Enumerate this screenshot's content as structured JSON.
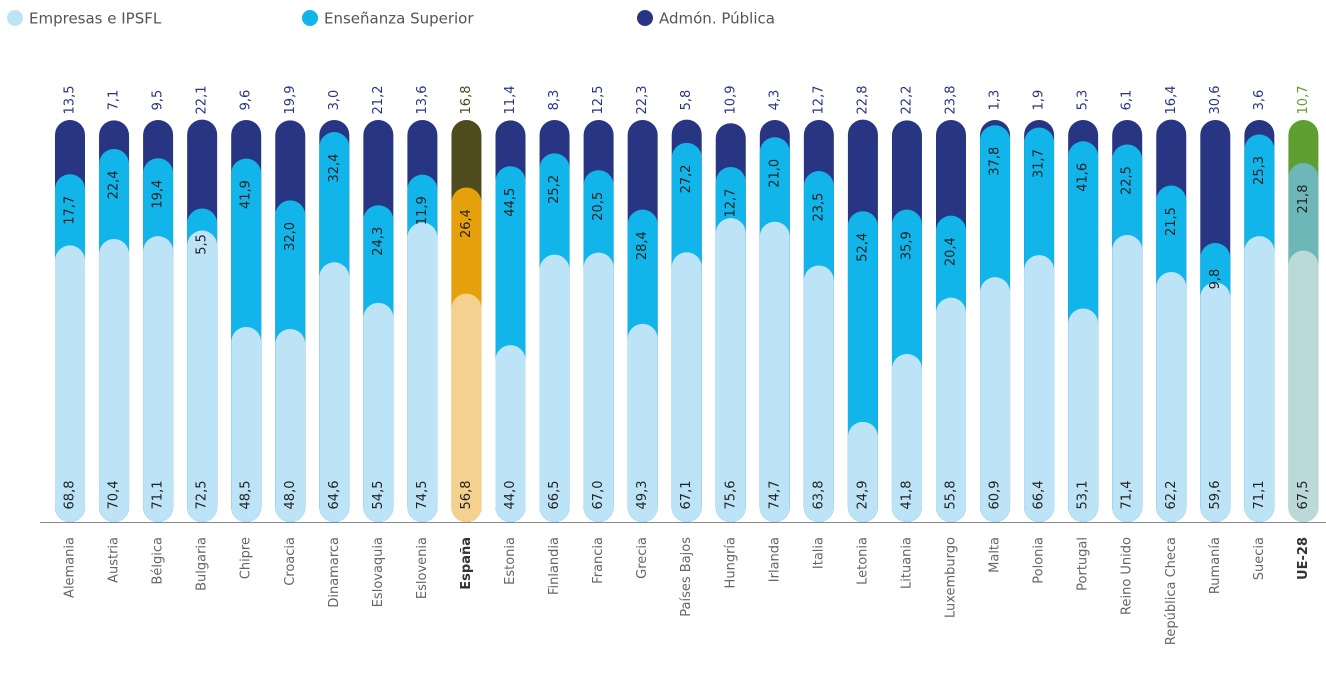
{
  "chart_data": {
    "type": "stacked_bar",
    "categories": [
      "Alemania",
      "Austria",
      "Bélgica",
      "Bulgaria",
      "Chipre",
      "Croacia",
      "Dinamarca",
      "Eslovaquia",
      "Eslovenia",
      "España",
      "Estonia",
      "Finlandia",
      "Francia",
      "Grecia",
      "Países Bajos",
      "Hungría",
      "Irlanda",
      "Italia",
      "Letonia",
      "Lituania",
      "Luxemburgo",
      "Malta",
      "Polonia",
      "Portugal",
      "Reino Unido",
      "República Checa",
      "Rumanía",
      "Suecia",
      "UE-28"
    ],
    "bold": [
      false,
      false,
      false,
      false,
      false,
      false,
      false,
      false,
      false,
      true,
      false,
      false,
      false,
      false,
      false,
      false,
      false,
      false,
      false,
      false,
      false,
      false,
      false,
      false,
      false,
      false,
      false,
      false,
      true
    ],
    "ylim": [
      0,
      100
    ],
    "series": [
      {
        "name": "Empresas e IPSFL",
        "color": "#bde3f7",
        "colors": [
          "#bde3f7",
          "#bde3f7",
          "#bde3f7",
          "#bde3f7",
          "#bde3f7",
          "#bde3f7",
          "#bde3f7",
          "#bde3f7",
          "#bde3f7",
          "#f5d190",
          "#bde3f7",
          "#bde3f7",
          "#bde3f7",
          "#bde3f7",
          "#bde3f7",
          "#bde3f7",
          "#bde3f7",
          "#bde3f7",
          "#bde3f7",
          "#bde3f7",
          "#bde3f7",
          "#bde3f7",
          "#bde3f7",
          "#bde3f7",
          "#bde3f7",
          "#bde3f7",
          "#bde3f7",
          "#bde3f7",
          "#bcd9d9"
        ],
        "values": [
          68.8,
          70.4,
          71.1,
          72.5,
          48.5,
          48.0,
          64.6,
          54.5,
          74.5,
          56.8,
          44.0,
          66.5,
          67.0,
          49.3,
          67.1,
          75.6,
          74.7,
          63.8,
          24.9,
          41.8,
          55.8,
          60.9,
          66.4,
          53.1,
          71.4,
          62.2,
          59.6,
          71.1,
          67.5
        ],
        "value_labels": [
          "68,8",
          "70,4",
          "71,1",
          "72,5",
          "48,5",
          "48,0",
          "64,6",
          "54,5",
          "74,5",
          "56,8",
          "44,0",
          "66,5",
          "67,0",
          "49,3",
          "67,1",
          "75,6",
          "74,7",
          "63,8",
          "24,9",
          "41,8",
          "55,8",
          "60,9",
          "66,4",
          "53,1",
          "71,4",
          "62,2",
          "59,6",
          "71,1",
          "67,5"
        ]
      },
      {
        "name": "Enseñanza Superior",
        "color": "#12b5ea",
        "colors": [
          "#12b5ea",
          "#12b5ea",
          "#12b5ea",
          "#12b5ea",
          "#12b5ea",
          "#12b5ea",
          "#12b5ea",
          "#12b5ea",
          "#12b5ea",
          "#e6a00c",
          "#12b5ea",
          "#12b5ea",
          "#12b5ea",
          "#12b5ea",
          "#12b5ea",
          "#12b5ea",
          "#12b5ea",
          "#12b5ea",
          "#12b5ea",
          "#12b5ea",
          "#12b5ea",
          "#12b5ea",
          "#12b5ea",
          "#12b5ea",
          "#12b5ea",
          "#12b5ea",
          "#12b5ea",
          "#12b5ea",
          "#6db7b9"
        ],
        "values": [
          17.7,
          22.4,
          19.4,
          5.5,
          41.9,
          32.0,
          32.4,
          24.3,
          11.9,
          26.4,
          44.5,
          25.2,
          20.5,
          28.4,
          27.2,
          12.7,
          21.0,
          23.5,
          52.4,
          35.9,
          20.4,
          37.8,
          31.7,
          41.6,
          22.5,
          21.5,
          9.8,
          25.3,
          21.8
        ],
        "value_labels": [
          "17,7",
          "22,4",
          "19,4",
          "5,5",
          "41,9",
          "32,0",
          "32,4",
          "24,3",
          "11,9",
          "26,4",
          "44,5",
          "25,2",
          "20,5",
          "28,4",
          "27,2",
          "12,7",
          "21,0",
          "23,5",
          "52,4",
          "35,9",
          "20,4",
          "37,8",
          "31,7",
          "41,6",
          "22,5",
          "21,5",
          "9,8",
          "25,3",
          "21,8"
        ]
      },
      {
        "name": "Admón. Pública",
        "color": "#283583",
        "colors": [
          "#283583",
          "#283583",
          "#283583",
          "#283583",
          "#283583",
          "#283583",
          "#283583",
          "#283583",
          "#283583",
          "#4e4b1c",
          "#283583",
          "#283583",
          "#283583",
          "#283583",
          "#283583",
          "#283583",
          "#283583",
          "#283583",
          "#283583",
          "#283583",
          "#283583",
          "#283583",
          "#283583",
          "#283583",
          "#283583",
          "#283583",
          "#283583",
          "#283583",
          "#5f9e33"
        ],
        "values": [
          13.5,
          7.1,
          9.5,
          22.1,
          9.6,
          19.9,
          3.0,
          21.2,
          13.6,
          16.8,
          11.4,
          8.3,
          12.5,
          22.3,
          5.8,
          10.9,
          4.3,
          12.7,
          22.8,
          22.2,
          23.8,
          1.3,
          1.9,
          5.3,
          6.1,
          16.4,
          30.6,
          3.6,
          10.7
        ],
        "value_labels": [
          "13,5",
          "7,1",
          "9,5",
          "22,1",
          "9,6",
          "19,9",
          "3,0",
          "21,2",
          "13,6",
          "16,8",
          "11,4",
          "8,3",
          "12,5",
          "22,3",
          "5,8",
          "10,9",
          "4,3",
          "12,7",
          "22,8",
          "22,2",
          "23,8",
          "1,3",
          "1,9",
          "5,3",
          "6,1",
          "16,4",
          "30,6",
          "3,6",
          "10,7"
        ]
      }
    ]
  }
}
